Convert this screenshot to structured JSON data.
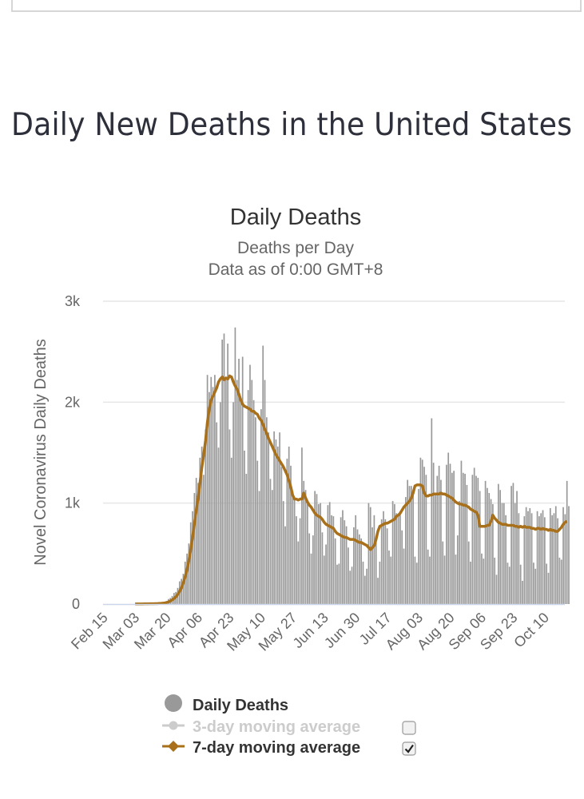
{
  "page": {
    "heading": "Daily New Deaths in the United States"
  },
  "chart_data": {
    "type": "bar",
    "title": "Daily Deaths",
    "subtitle_lines": [
      "Deaths per Day",
      "Data as of 0:00 GMT+8"
    ],
    "xlabel": "",
    "ylabel": "Novel Coronavirus Daily Deaths",
    "ylim": [
      0,
      3000
    ],
    "y_ticks": [
      {
        "value": 0,
        "label": "0"
      },
      {
        "value": 1000,
        "label": "1k"
      },
      {
        "value": 2000,
        "label": "2k"
      },
      {
        "value": 3000,
        "label": "3k"
      }
    ],
    "grid": true,
    "start_date": "Feb 15",
    "x_tick_labels": [
      "Feb 15",
      "Mar 03",
      "Mar 20",
      "Apr 06",
      "Apr 23",
      "May 10",
      "May 27",
      "Jun 13",
      "Jun 30",
      "Jul 17",
      "Aug 03",
      "Aug 20",
      "Sep 06",
      "Sep 23",
      "Oct 10"
    ],
    "x_tick_interval_days": 17,
    "legend_position": "bottom",
    "legend": [
      {
        "name": "Daily Deaths",
        "color": "#999999",
        "marker": "circle",
        "enabled": true,
        "checkbox": false
      },
      {
        "name": "3-day moving average",
        "color": "#cccccc",
        "marker": "circle-line",
        "enabled": false,
        "checkbox": true,
        "checked": false
      },
      {
        "name": "7-day moving average",
        "color": "#a8701a",
        "marker": "diamond-line",
        "enabled": true,
        "checkbox": true,
        "checked": true
      }
    ],
    "series": [
      {
        "name": "Daily Deaths",
        "type": "bar",
        "color": "#999999",
        "values": [
          0,
          0,
          0,
          0,
          0,
          0,
          0,
          0,
          0,
          0,
          0,
          0,
          0,
          0,
          0,
          0,
          1,
          1,
          0,
          2,
          3,
          1,
          4,
          2,
          3,
          4,
          5,
          4,
          8,
          12,
          10,
          14,
          20,
          30,
          50,
          60,
          80,
          110,
          120,
          160,
          225,
          250,
          300,
          420,
          500,
          600,
          810,
          920,
          1100,
          1250,
          1200,
          1450,
          1560,
          1280,
          1730,
          2270,
          2100,
          2250,
          2150,
          2270,
          1800,
          1550,
          2000,
          2620,
          2680,
          2220,
          2580,
          1730,
          1450,
          2000,
          2740,
          2220,
          2430,
          2000,
          2450,
          1520,
          1290,
          2120,
          2370,
          2220,
          2020,
          1850,
          1420,
          1120,
          1930,
          2560,
          2220,
          1850,
          1700,
          1240,
          1130,
          1710,
          1630,
          1560,
          1700,
          1360,
          1020,
          770,
          1440,
          1560,
          1370,
          1120,
          1050,
          870,
          620,
          850,
          1550,
          1220,
          1130,
          990,
          700,
          500,
          680,
          1120,
          1090,
          990,
          1000,
          710,
          480,
          590,
          980,
          1010,
          880,
          870,
          650,
          390,
          400,
          860,
          930,
          830,
          770,
          560,
          330,
          370,
          760,
          880,
          740,
          690,
          650,
          420,
          280,
          350,
          1000,
          960,
          760,
          880,
          640,
          260,
          420,
          840,
          920,
          840,
          750,
          530,
          470,
          1020,
          990,
          900,
          880,
          890,
          730,
          550,
          1060,
          1230,
          1170,
          1170,
          1130,
          470,
          410,
          1140,
          1450,
          1430,
          1360,
          1280,
          540,
          470,
          1840,
          1400,
          1080,
          1270,
          1370,
          1230,
          620,
          480,
          1380,
          1500,
          1390,
          1300,
          1320,
          490,
          680,
          1020,
          1420,
          1300,
          1290,
          1180,
          620,
          420,
          1280,
          1350,
          1270,
          1250,
          1120,
          500,
          450,
          1220,
          1150,
          1100,
          1040,
          990,
          460,
          290,
          1190,
          1130,
          1000,
          1000,
          880,
          410,
          370,
          1170,
          1200,
          1000,
          1120,
          900,
          390,
          230,
          870,
          960,
          920,
          950,
          900,
          410,
          350,
          920,
          870,
          900,
          930,
          860,
          400,
          310,
          950,
          880,
          900,
          970,
          850,
          460,
          440,
          960,
          890,
          1220,
          970
        ]
      },
      {
        "name": "7-day moving average",
        "type": "line",
        "color": "#a8701a",
        "values": [
          null,
          null,
          null,
          null,
          null,
          null,
          null,
          null,
          null,
          null,
          null,
          null,
          null,
          null,
          null,
          null,
          1,
          1,
          1,
          1,
          1,
          2,
          2,
          2,
          3,
          3,
          3,
          4,
          4,
          6,
          7,
          9,
          11,
          15,
          21,
          29,
          41,
          55,
          72,
          95,
          125,
          160,
          210,
          270,
          340,
          430,
          540,
          660,
          800,
          930,
          1050,
          1200,
          1350,
          1480,
          1620,
          1800,
          1930,
          2020,
          2060,
          2100,
          2140,
          2200,
          2230,
          2250,
          2220,
          2240,
          2230,
          2260,
          2250,
          2200,
          2160,
          2130,
          2080,
          2020,
          1980,
          1960,
          1950,
          1940,
          1930,
          1910,
          1910,
          1890,
          1880,
          1840,
          1820,
          1780,
          1730,
          1690,
          1640,
          1600,
          1560,
          1520,
          1480,
          1450,
          1420,
          1390,
          1360,
          1320,
          1280,
          1220,
          1160,
          1080,
          1040,
          1040,
          1030,
          1040,
          1040,
          1100,
          1050,
          1010,
          980,
          960,
          930,
          900,
          880,
          870,
          860,
          840,
          810,
          790,
          780,
          770,
          760,
          750,
          720,
          700,
          690,
          680,
          670,
          660,
          660,
          650,
          640,
          640,
          640,
          630,
          620,
          610,
          610,
          600,
          590,
          580,
          560,
          540,
          560,
          580,
          640,
          720,
          770,
          780,
          790,
          800,
          800,
          810,
          820,
          830,
          840,
          870,
          880,
          900,
          930,
          960,
          980,
          1000,
          1020,
          1050,
          1100,
          1170,
          1180,
          1180,
          1180,
          1170,
          1100,
          1070,
          1070,
          1080,
          1080,
          1090,
          1090,
          1090,
          1090,
          1100,
          1090,
          1090,
          1080,
          1070,
          1060,
          1050,
          1030,
          1010,
          1000,
          990,
          990,
          980,
          980,
          970,
          960,
          940,
          930,
          920,
          910,
          880,
          770,
          770,
          770,
          770,
          780,
          780,
          820,
          880,
          850,
          830,
          810,
          800,
          790,
          790,
          790,
          780,
          780,
          780,
          780,
          770,
          770,
          760,
          770,
          760,
          770,
          760,
          760,
          760,
          750,
          750,
          740,
          750,
          750,
          740,
          750,
          740,
          740,
          730,
          740,
          730,
          730,
          720,
          720,
          740,
          760,
          790,
          810,
          820
        ]
      }
    ]
  }
}
